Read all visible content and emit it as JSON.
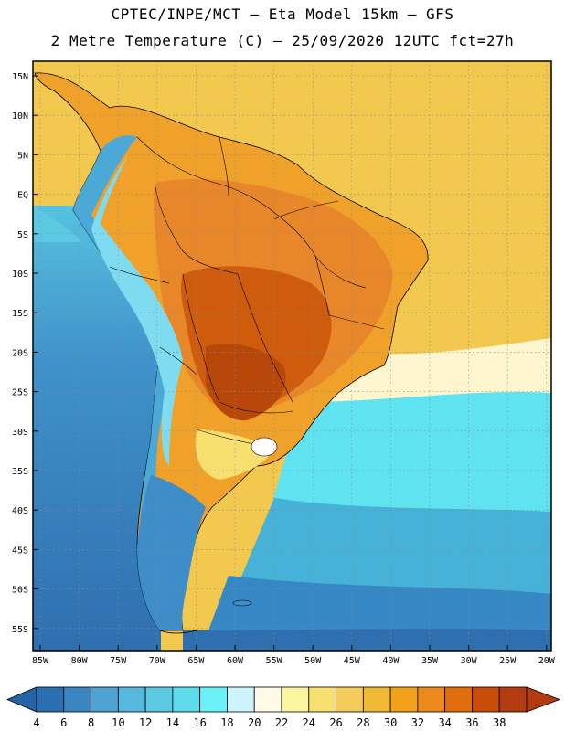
{
  "header": {
    "title_line1": "CPTEC/INPE/MCT –  Eta Model 15km – GFS",
    "title_line2": "2 Metre Temperature (C) – 25/09/2020 12UTC fct=27h"
  },
  "axes": {
    "lat_labels": [
      "15N",
      "10N",
      "5N",
      "EQ",
      "5S",
      "10S",
      "15S",
      "20S",
      "25S",
      "30S",
      "35S",
      "40S",
      "45S",
      "50S",
      "55S"
    ],
    "lon_labels": [
      "85W",
      "80W",
      "75W",
      "70W",
      "65W",
      "60W",
      "55W",
      "50W",
      "45W",
      "40W",
      "35W",
      "30W",
      "25W",
      "20W"
    ]
  },
  "colorbar": {
    "labels": [
      "4",
      "6",
      "8",
      "10",
      "12",
      "14",
      "16",
      "18",
      "20",
      "22",
      "24",
      "26",
      "28",
      "30",
      "32",
      "34",
      "36",
      "38"
    ],
    "colors": [
      "#2b6fb3",
      "#3a86c3",
      "#4ea2d4",
      "#55b8dc",
      "#5cc9e2",
      "#5fdcec",
      "#6cf0f7",
      "#cef4fb",
      "#fffbe6",
      "#fbf7a1",
      "#f7e070",
      "#f4cc5c",
      "#f0b834",
      "#f2a21a",
      "#ec8a1e",
      "#e06d0e",
      "#c94d06",
      "#b23b0f"
    ],
    "end_left_color": "#2463a6",
    "end_right_color": "#b23b0f"
  },
  "map": {
    "ocean_colors": {
      "pac_deep": "#2f6fb0",
      "pac_mid": "#3f92ca",
      "pac_light": "#56c2e0",
      "atl_warm": "#f3c84e",
      "atl_pale": "#fdf6cf",
      "atl_cyan": "#5fe3f0",
      "atl_blue": "#46b2d8",
      "atl_deep": "#2f73b3"
    },
    "land_colors": {
      "hot": "#cf5c0c",
      "warm": "#e98f1f",
      "mild": "#f4b63a",
      "andes_cold": "#4aa9d6",
      "andes_cool": "#7fdbef",
      "patagonia": "#3e8cc8"
    }
  }
}
